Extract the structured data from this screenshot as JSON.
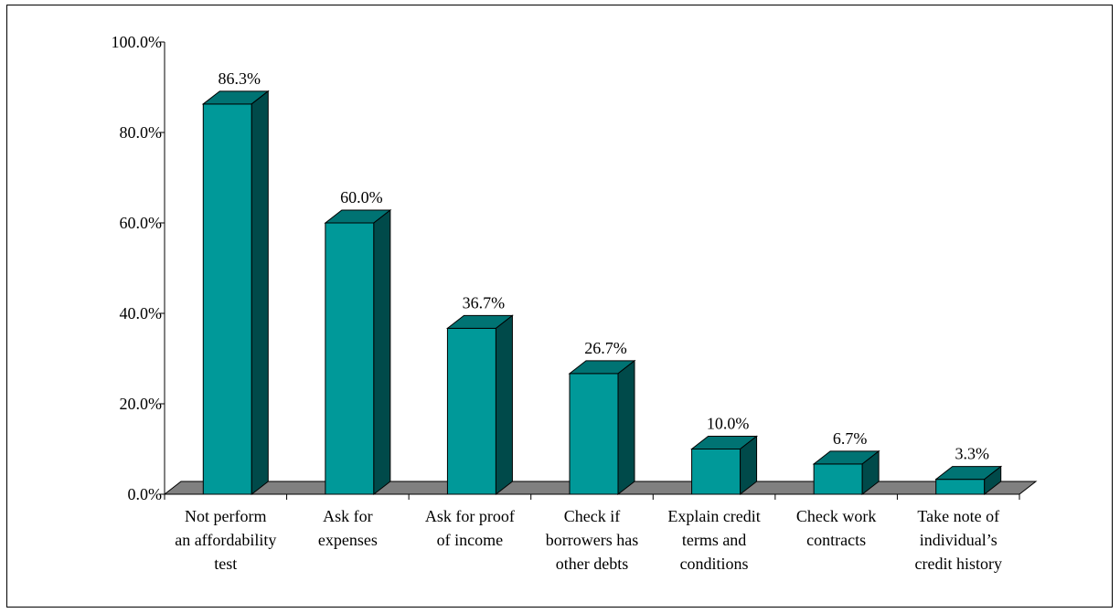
{
  "chart_data": {
    "type": "bar",
    "title": "",
    "xlabel": "",
    "ylabel": "",
    "ylim": [
      0,
      100
    ],
    "yticks": [
      "0.0%",
      "20.0%",
      "40.0%",
      "60.0%",
      "80.0%",
      "100.0%"
    ],
    "ytick_values": [
      0,
      20,
      40,
      60,
      80,
      100
    ],
    "categories": [
      [
        "Not perform",
        "an affordability",
        "test"
      ],
      [
        "Ask for",
        "expenses"
      ],
      [
        "Ask for proof",
        "of income"
      ],
      [
        "Check if",
        "borrowers has",
        "other debts"
      ],
      [
        "Explain credit",
        "terms and",
        "conditions"
      ],
      [
        "Check work",
        "contracts"
      ],
      [
        "Take note of",
        "individual’s",
        "credit history"
      ]
    ],
    "values": [
      86.3,
      60.0,
      36.7,
      26.7,
      10.0,
      6.7,
      3.3
    ],
    "value_labels": [
      "86.3%",
      "60.0%",
      "36.7%",
      "26.7%",
      "10.0%",
      "6.7%",
      "3.3%"
    ],
    "legend": "none",
    "grid": false,
    "colors": {
      "bar_front": "#009999",
      "bar_top": "#007373",
      "bar_side": "#004a4a",
      "floor": "#808080"
    }
  }
}
